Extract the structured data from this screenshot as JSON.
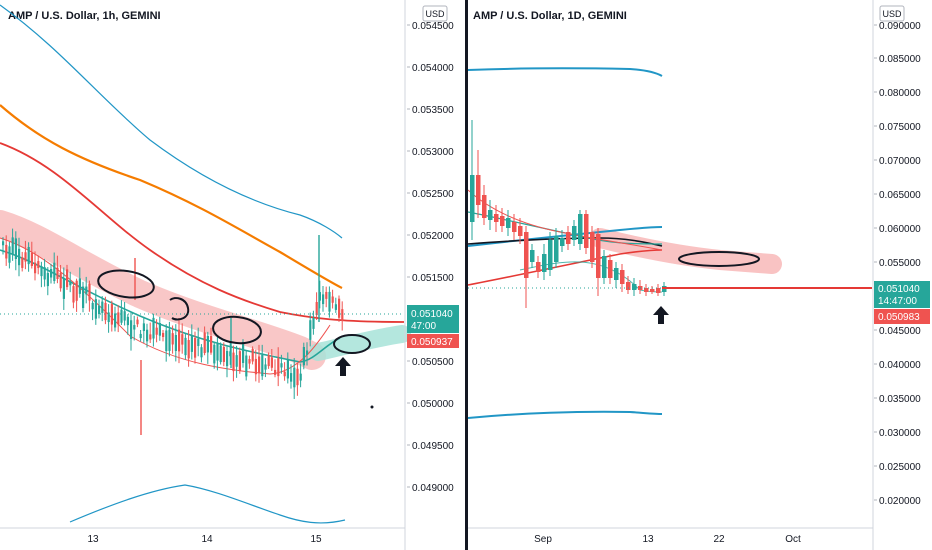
{
  "colors": {
    "bull": "#26a69a",
    "bear": "#ef5350",
    "ma_orange": "#f57c00",
    "ma_red": "#e53935",
    "ma_blue": "#2196c6",
    "ma_black": "#131722",
    "band_pink": "#f7b4b4",
    "band_teal": "#a7e3d8",
    "price_tag": "#26a69a",
    "level_tag": "#ef5350",
    "divider": "#131722"
  },
  "chart_data": [
    {
      "type": "candlestick",
      "title": "AMP / U.S. Dollar, 1h, GEMINI",
      "currency_label": "USD",
      "x_ticks": [
        "13",
        "14",
        "15"
      ],
      "y_ticks": [
        "0.054500",
        "0.054000",
        "0.053500",
        "0.053000",
        "0.052500",
        "0.052000",
        "0.051500",
        "0.050500",
        "0.050000",
        "0.049500",
        "0.049000"
      ],
      "ylim": [
        0.0486,
        0.0547
      ],
      "grid": false,
      "price_tag": {
        "value": "0.051040",
        "countdown": "47:00"
      },
      "level_tag": {
        "value": "0.050937"
      },
      "annotations": [
        "circled highs",
        "arrow up"
      ]
    },
    {
      "type": "candlestick",
      "title": "AMP / U.S. Dollar, 1D, GEMINI",
      "currency_label": "USD",
      "x_ticks": [
        "Sep",
        "13",
        "22",
        "Oct"
      ],
      "y_ticks": [
        "0.090000",
        "0.085000",
        "0.080000",
        "0.075000",
        "0.070000",
        "0.065000",
        "0.060000",
        "0.055000",
        "0.050000",
        "0.045000",
        "0.040000",
        "0.035000",
        "0.030000",
        "0.025000",
        "0.020000"
      ],
      "ylim": [
        0.0175,
        0.0915
      ],
      "grid": false,
      "price_tag": {
        "value": "0.051040",
        "countdown": "14:47:00"
      },
      "level_tag": {
        "value": "0.050983"
      },
      "annotations": [
        "circled zone",
        "arrow up"
      ]
    }
  ]
}
